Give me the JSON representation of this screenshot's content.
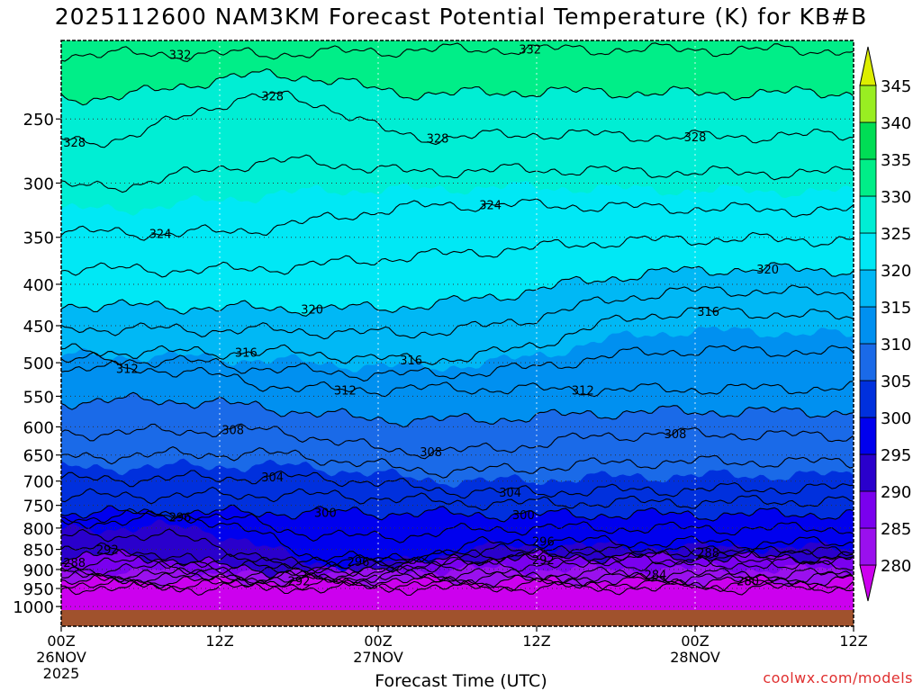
{
  "title": "2025112600 NAM3KM Forecast Potential Temperature (K) for KB#B",
  "xlabel": "Forecast Time (UTC)",
  "credit": "coolwx.com/models",
  "x_ticks": [
    {
      "hours": 0,
      "lines": [
        "00Z",
        "26NOV",
        "2025"
      ]
    },
    {
      "hours": 12,
      "lines": [
        "12Z"
      ]
    },
    {
      "hours": 24,
      "lines": [
        "00Z",
        "27NOV"
      ]
    },
    {
      "hours": 36,
      "lines": [
        "12Z"
      ]
    },
    {
      "hours": 48,
      "lines": [
        "00Z",
        "28NOV"
      ]
    },
    {
      "hours": 60,
      "lines": [
        "12Z"
      ]
    }
  ],
  "colorbar_labels": [
    "345",
    "340",
    "335",
    "330",
    "325",
    "320",
    "315",
    "310",
    "305",
    "300",
    "295",
    "290",
    "285",
    "280"
  ],
  "colors": {
    "ground": "#a0522d",
    "credit": "#e03030"
  },
  "chart_data": {
    "type": "contour",
    "title": "2025112600 NAM3KM Forecast Potential Temperature (K) for KB#B",
    "xlabel": "Forecast Time (UTC)",
    "ylabel": "",
    "x_unit": "forecast hours",
    "xlim": [
      0,
      60
    ],
    "y_unit": "hPa",
    "y_ticks": [
      250,
      300,
      350,
      400,
      450,
      500,
      550,
      600,
      650,
      700,
      750,
      800,
      850,
      900,
      950,
      1000
    ],
    "ylim": [
      1010,
      200
    ],
    "y_scale": "log-pressure",
    "colorbar": {
      "levels": [
        280,
        285,
        290,
        295,
        300,
        305,
        310,
        315,
        320,
        325,
        330,
        335,
        340,
        345
      ],
      "colors": [
        "#cc00ee",
        "#9a10ee",
        "#7a00ee",
        "#2a00cc",
        "#0000ee",
        "#0030dd",
        "#1a6ae8",
        "#0090f0",
        "#00b8f5",
        "#00e8f5",
        "#00eed4",
        "#00ee88",
        "#00dd55",
        "#99ee22",
        "#ddee00"
      ]
    },
    "contour_interval": 2,
    "labeled_contours": [
      {
        "value": 332,
        "x": 9.0,
        "p": 208
      },
      {
        "value": 332,
        "x": 35.5,
        "p": 205
      },
      {
        "value": 328,
        "x": 1.0,
        "p": 267
      },
      {
        "value": 328,
        "x": 16.0,
        "p": 234
      },
      {
        "value": 328,
        "x": 28.5,
        "p": 264
      },
      {
        "value": 328,
        "x": 48.0,
        "p": 263
      },
      {
        "value": 324,
        "x": 7.5,
        "p": 346
      },
      {
        "value": 324,
        "x": 32.5,
        "p": 319
      },
      {
        "value": 320,
        "x": 19.0,
        "p": 429
      },
      {
        "value": 320,
        "x": 53.5,
        "p": 383
      },
      {
        "value": 316,
        "x": 14.0,
        "p": 485
      },
      {
        "value": 316,
        "x": 26.5,
        "p": 496
      },
      {
        "value": 316,
        "x": 49.0,
        "p": 432
      },
      {
        "value": 312,
        "x": 5.0,
        "p": 508
      },
      {
        "value": 312,
        "x": 21.5,
        "p": 540
      },
      {
        "value": 312,
        "x": 39.5,
        "p": 540
      },
      {
        "value": 308,
        "x": 13.0,
        "p": 605
      },
      {
        "value": 308,
        "x": 28.0,
        "p": 644
      },
      {
        "value": 308,
        "x": 46.5,
        "p": 612
      },
      {
        "value": 304,
        "x": 16.0,
        "p": 692
      },
      {
        "value": 304,
        "x": 34.0,
        "p": 722
      },
      {
        "value": 300,
        "x": 20.0,
        "p": 765
      },
      {
        "value": 300,
        "x": 35.0,
        "p": 770
      },
      {
        "value": 296,
        "x": 9.0,
        "p": 775
      },
      {
        "value": 296,
        "x": 22.5,
        "p": 880
      },
      {
        "value": 296,
        "x": 36.5,
        "p": 830
      },
      {
        "value": 292,
        "x": 3.5,
        "p": 850
      },
      {
        "value": 292,
        "x": 18.0,
        "p": 930
      },
      {
        "value": 292,
        "x": 36.5,
        "p": 875
      },
      {
        "value": 288,
        "x": 1.0,
        "p": 882
      },
      {
        "value": 288,
        "x": 49.0,
        "p": 858
      },
      {
        "value": 284,
        "x": 45.0,
        "p": 913
      },
      {
        "value": 280,
        "x": 52.0,
        "p": 930
      }
    ]
  }
}
